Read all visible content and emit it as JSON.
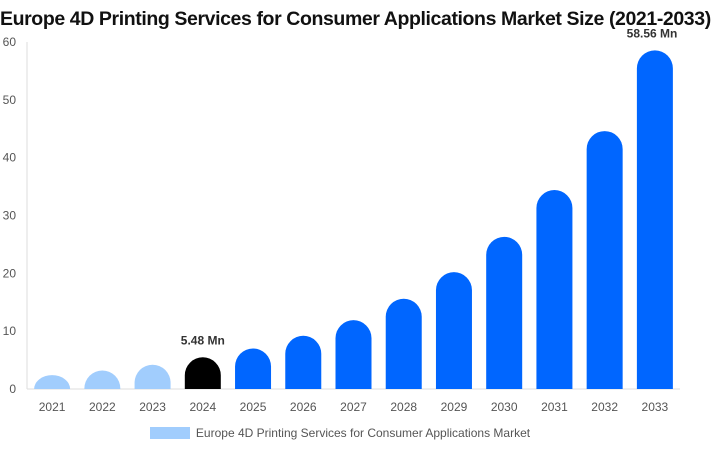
{
  "chart_data": {
    "type": "bar",
    "title": "Europe 4D Printing Services for Consumer Applications Market Size (2021-2033)",
    "categories": [
      "2021",
      "2022",
      "2023",
      "2024",
      "2025",
      "2026",
      "2027",
      "2028",
      "2029",
      "2030",
      "2031",
      "2032",
      "2033"
    ],
    "series": [
      {
        "name": "Europe 4D Printing Services for Consumer Applications Market",
        "values": [
          2.4,
          3.2,
          4.2,
          5.48,
          7.0,
          9.2,
          11.9,
          15.6,
          20.2,
          26.3,
          34.4,
          44.6,
          58.56
        ]
      }
    ],
    "data_labels": {
      "3": "5.48 Mn",
      "12": "58.56 Mn"
    },
    "ylim": [
      0,
      60
    ],
    "yticks": [
      0,
      10,
      20,
      30,
      40,
      50,
      60
    ],
    "grid": false,
    "legend": "bottom",
    "colors": {
      "historical": "#a1cdfd",
      "base_year": "#000000",
      "forecast": "#0066ff"
    }
  }
}
